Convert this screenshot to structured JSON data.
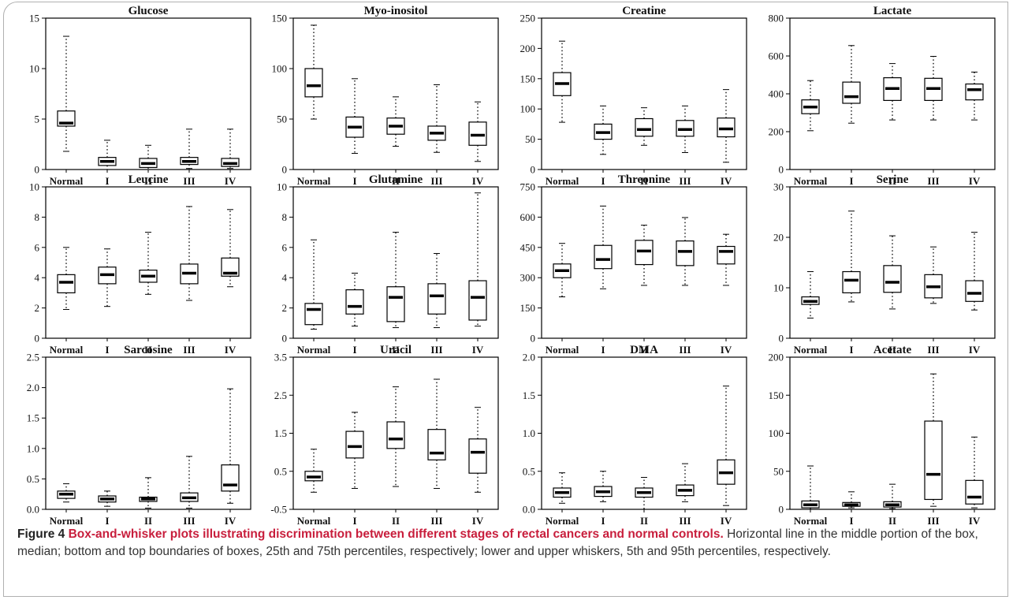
{
  "caption": {
    "title": "Figure 4 Box-and-whisker plots illustrating discrimination between different stages of rectal cancers and normal controls.",
    "body": " Horizontal line in the middle portion of the box, median; bottom and top boundaries of boxes, 25th and 75th percentiles, respectively; lower and upper whiskers, 5th and 95th percentiles, respectively."
  },
  "chart_data": [
    {
      "type": "box",
      "title": "Glucose",
      "categories": [
        "Normal",
        "I",
        "II",
        "III",
        "IV"
      ],
      "ylim": [
        0,
        15
      ],
      "yticks": [
        "0",
        "5",
        "10",
        "15"
      ],
      "boxes": [
        {
          "low": 1.8,
          "q1": 4.3,
          "median": 4.6,
          "q3": 5.8,
          "high": 13.2
        },
        {
          "low": 0.0,
          "q1": 0.4,
          "median": 0.8,
          "q3": 1.2,
          "high": 2.9
        },
        {
          "low": 0.0,
          "q1": 0.2,
          "median": 0.6,
          "q3": 1.1,
          "high": 2.4
        },
        {
          "low": 0.1,
          "q1": 0.5,
          "median": 0.8,
          "q3": 1.2,
          "high": 4.0
        },
        {
          "low": 0.1,
          "q1": 0.3,
          "median": 0.6,
          "q3": 1.1,
          "high": 4.0
        }
      ]
    },
    {
      "type": "box",
      "title": "Myo-inositol",
      "categories": [
        "Normal",
        "I",
        "II",
        "III",
        "IV"
      ],
      "ylim": [
        0,
        150
      ],
      "yticks": [
        "0",
        "50",
        "100",
        "150"
      ],
      "boxes": [
        {
          "low": 50,
          "q1": 72,
          "median": 83,
          "q3": 100,
          "high": 143
        },
        {
          "low": 16,
          "q1": 32,
          "median": 42,
          "q3": 52,
          "high": 90
        },
        {
          "low": 23,
          "q1": 35,
          "median": 43,
          "q3": 51,
          "high": 72
        },
        {
          "low": 17,
          "q1": 29,
          "median": 36,
          "q3": 43,
          "high": 84
        },
        {
          "low": 8,
          "q1": 24,
          "median": 34,
          "q3": 47,
          "high": 67
        }
      ]
    },
    {
      "type": "box",
      "title": "Creatine",
      "categories": [
        "Normal",
        "I",
        "II",
        "III",
        "IV"
      ],
      "ylim": [
        0,
        250
      ],
      "yticks": [
        "0",
        "50",
        "100",
        "150",
        "200",
        "250"
      ],
      "boxes": [
        {
          "low": 78,
          "q1": 122,
          "median": 142,
          "q3": 160,
          "high": 212
        },
        {
          "low": 25,
          "q1": 50,
          "median": 61,
          "q3": 75,
          "high": 105
        },
        {
          "low": 40,
          "q1": 55,
          "median": 66,
          "q3": 84,
          "high": 102
        },
        {
          "low": 28,
          "q1": 55,
          "median": 66,
          "q3": 81,
          "high": 105
        },
        {
          "low": 12,
          "q1": 54,
          "median": 67,
          "q3": 85,
          "high": 132
        }
      ]
    },
    {
      "type": "box",
      "title": "Lactate",
      "categories": [
        "Normal",
        "I",
        "II",
        "III",
        "IV"
      ],
      "ylim": [
        0,
        800
      ],
      "yticks": [
        "0",
        "200",
        "400",
        "600",
        "800"
      ],
      "boxes": [
        {
          "low": 205,
          "q1": 295,
          "median": 330,
          "q3": 368,
          "high": 470
        },
        {
          "low": 245,
          "q1": 350,
          "median": 385,
          "q3": 462,
          "high": 655
        },
        {
          "low": 262,
          "q1": 365,
          "median": 428,
          "q3": 485,
          "high": 560
        },
        {
          "low": 262,
          "q1": 365,
          "median": 428,
          "q3": 482,
          "high": 598
        },
        {
          "low": 262,
          "q1": 368,
          "median": 422,
          "q3": 452,
          "high": 515
        }
      ]
    },
    {
      "type": "box",
      "title": "Leucine",
      "categories": [
        "Normal",
        "I",
        "II",
        "III",
        "IV"
      ],
      "ylim": [
        0,
        10
      ],
      "yticks": [
        "0",
        "2",
        "4",
        "6",
        "8",
        "10"
      ],
      "boxes": [
        {
          "low": 1.9,
          "q1": 3.0,
          "median": 3.7,
          "q3": 4.2,
          "high": 6.0
        },
        {
          "low": 2.1,
          "q1": 3.6,
          "median": 4.2,
          "q3": 4.7,
          "high": 5.9
        },
        {
          "low": 2.9,
          "q1": 3.7,
          "median": 4.1,
          "q3": 4.5,
          "high": 7.0
        },
        {
          "low": 2.5,
          "q1": 3.6,
          "median": 4.3,
          "q3": 4.9,
          "high": 8.7
        },
        {
          "low": 3.4,
          "q1": 4.1,
          "median": 4.3,
          "q3": 5.3,
          "high": 8.5
        }
      ]
    },
    {
      "type": "box",
      "title": "Glutamine",
      "categories": [
        "Normal",
        "I",
        "II",
        "III",
        "IV"
      ],
      "ylim": [
        0,
        10
      ],
      "yticks": [
        "0",
        "2",
        "4",
        "6",
        "8",
        "10"
      ],
      "boxes": [
        {
          "low": 0.6,
          "q1": 0.9,
          "median": 1.9,
          "q3": 2.3,
          "high": 6.5
        },
        {
          "low": 0.8,
          "q1": 1.6,
          "median": 2.1,
          "q3": 3.2,
          "high": 4.3
        },
        {
          "low": 0.7,
          "q1": 1.1,
          "median": 2.7,
          "q3": 3.4,
          "high": 7.0
        },
        {
          "low": 0.7,
          "q1": 1.6,
          "median": 2.8,
          "q3": 3.6,
          "high": 5.6
        },
        {
          "low": 0.8,
          "q1": 1.2,
          "median": 2.7,
          "q3": 3.8,
          "high": 9.6
        }
      ]
    },
    {
      "type": "box",
      "title": "Threonine",
      "categories": [
        "Normal",
        "I",
        "II",
        "III",
        "IV"
      ],
      "ylim": [
        0,
        750
      ],
      "yticks": [
        "0",
        "150",
        "300",
        "450",
        "600",
        "750"
      ],
      "boxes": [
        {
          "low": 205,
          "q1": 300,
          "median": 335,
          "q3": 368,
          "high": 470
        },
        {
          "low": 245,
          "q1": 345,
          "median": 390,
          "q3": 460,
          "high": 655
        },
        {
          "low": 262,
          "q1": 365,
          "median": 432,
          "q3": 485,
          "high": 560
        },
        {
          "low": 262,
          "q1": 360,
          "median": 430,
          "q3": 482,
          "high": 598
        },
        {
          "low": 262,
          "q1": 368,
          "median": 430,
          "q3": 455,
          "high": 515
        }
      ]
    },
    {
      "type": "box",
      "title": "Serine",
      "categories": [
        "Normal",
        "I",
        "II",
        "III",
        "IV"
      ],
      "ylim": [
        0,
        30
      ],
      "yticks": [
        "0",
        "10",
        "20",
        "30"
      ],
      "boxes": [
        {
          "low": 4.0,
          "q1": 6.7,
          "median": 7.3,
          "q3": 8.2,
          "high": 13.2
        },
        {
          "low": 7.2,
          "q1": 9.0,
          "median": 11.5,
          "q3": 13.2,
          "high": 25.2
        },
        {
          "low": 5.8,
          "q1": 9.1,
          "median": 11.1,
          "q3": 14.4,
          "high": 20.3
        },
        {
          "low": 6.9,
          "q1": 8.0,
          "median": 10.2,
          "q3": 12.6,
          "high": 18.1
        },
        {
          "low": 5.6,
          "q1": 7.3,
          "median": 8.9,
          "q3": 11.4,
          "high": 21.0
        }
      ]
    },
    {
      "type": "box",
      "title": "Sarcosine",
      "categories": [
        "Normal",
        "I",
        "II",
        "III",
        "IV"
      ],
      "ylim": [
        0,
        2.5
      ],
      "yticks": [
        "0.0",
        "0.5",
        "1.0",
        "1.5",
        "2.0",
        "2.5"
      ],
      "boxes": [
        {
          "low": 0.12,
          "q1": 0.18,
          "median": 0.25,
          "q3": 0.3,
          "high": 0.42
        },
        {
          "low": 0.05,
          "q1": 0.12,
          "median": 0.17,
          "q3": 0.22,
          "high": 0.3
        },
        {
          "low": 0.02,
          "q1": 0.13,
          "median": 0.17,
          "q3": 0.2,
          "high": 0.52
        },
        {
          "low": 0.02,
          "q1": 0.13,
          "median": 0.19,
          "q3": 0.27,
          "high": 0.87
        },
        {
          "low": 0.1,
          "q1": 0.3,
          "median": 0.4,
          "q3": 0.73,
          "high": 1.98
        }
      ]
    },
    {
      "type": "box",
      "title": "Uracil",
      "categories": [
        "Normal",
        "I",
        "II",
        "III",
        "IV"
      ],
      "ylim": [
        -0.5,
        3.5
      ],
      "yticks": [
        "-0.5",
        "0.5",
        "1.5",
        "2.5",
        "3.5"
      ],
      "boxes": [
        {
          "low": -0.05,
          "q1": 0.25,
          "median": 0.35,
          "q3": 0.5,
          "high": 1.08
        },
        {
          "low": 0.05,
          "q1": 0.85,
          "median": 1.15,
          "q3": 1.55,
          "high": 2.05
        },
        {
          "low": 0.1,
          "q1": 1.1,
          "median": 1.35,
          "q3": 1.8,
          "high": 2.72
        },
        {
          "low": 0.05,
          "q1": 0.8,
          "median": 0.98,
          "q3": 1.6,
          "high": 2.92
        },
        {
          "low": -0.05,
          "q1": 0.45,
          "median": 1.0,
          "q3": 1.35,
          "high": 2.18
        }
      ]
    },
    {
      "type": "box",
      "title": "DMA",
      "categories": [
        "Normal",
        "I",
        "II",
        "III",
        "IV"
      ],
      "ylim": [
        0,
        2.0
      ],
      "yticks": [
        "0.0",
        "0.5",
        "1.0",
        "1.5",
        "2.0"
      ],
      "boxes": [
        {
          "low": 0.08,
          "q1": 0.16,
          "median": 0.22,
          "q3": 0.28,
          "high": 0.48
        },
        {
          "low": 0.1,
          "q1": 0.17,
          "median": 0.23,
          "q3": 0.3,
          "high": 0.5
        },
        {
          "low": 0.0,
          "q1": 0.16,
          "median": 0.22,
          "q3": 0.28,
          "high": 0.42
        },
        {
          "low": 0.1,
          "q1": 0.18,
          "median": 0.25,
          "q3": 0.32,
          "high": 0.6
        },
        {
          "low": 0.05,
          "q1": 0.33,
          "median": 0.48,
          "q3": 0.65,
          "high": 1.62
        }
      ]
    },
    {
      "type": "box",
      "title": "Acetate",
      "categories": [
        "Normal",
        "I",
        "II",
        "III",
        "IV"
      ],
      "ylim": [
        0,
        200
      ],
      "yticks": [
        "0",
        "50",
        "100",
        "150",
        "200"
      ],
      "boxes": [
        {
          "low": 0,
          "q1": 2,
          "median": 6,
          "q3": 11,
          "high": 57
        },
        {
          "low": 2,
          "q1": 4,
          "median": 6,
          "q3": 9,
          "high": 23
        },
        {
          "low": 1,
          "q1": 3,
          "median": 6,
          "q3": 10,
          "high": 33
        },
        {
          "low": 4,
          "q1": 13,
          "median": 46,
          "q3": 116,
          "high": 178
        },
        {
          "low": 2,
          "q1": 7,
          "median": 16,
          "q3": 38,
          "high": 95
        }
      ]
    }
  ]
}
